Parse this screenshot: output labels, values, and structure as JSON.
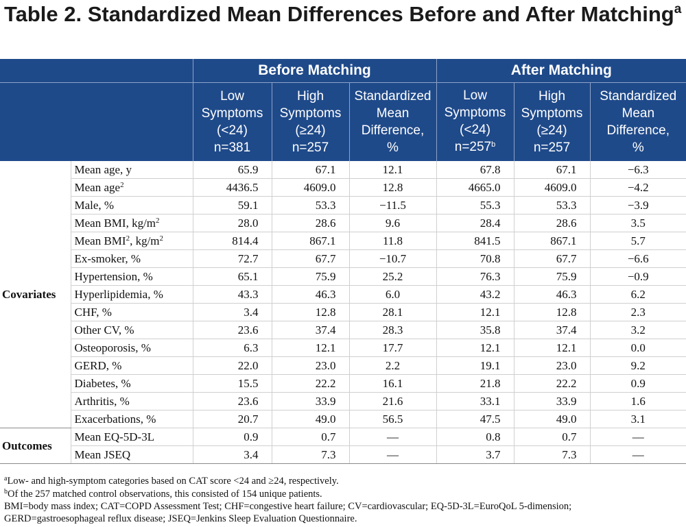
{
  "title": {
    "text": "Table 2. Standardized Mean Differences Before and After Matching",
    "superscript": "a"
  },
  "header": {
    "groups": [
      "Before Matching",
      "After Matching"
    ],
    "columns": [
      {
        "lines": [
          "Low",
          "Symptoms",
          "(<24)",
          "n=381"
        ],
        "sup": ""
      },
      {
        "lines": [
          "High",
          "Symptoms",
          "(≥24)",
          "n=257"
        ],
        "sup": ""
      },
      {
        "lines": [
          "Standardized",
          "Mean",
          "Difference,",
          "%"
        ],
        "sup": ""
      },
      {
        "lines": [
          "Low",
          "Symptoms",
          "(<24)",
          "n=257"
        ],
        "sup": "b"
      },
      {
        "lines": [
          "High",
          "Symptoms",
          "(≥24)",
          "n=257"
        ],
        "sup": ""
      },
      {
        "lines": [
          "Standardized",
          "Mean",
          "Difference,",
          "%"
        ],
        "sup": ""
      }
    ]
  },
  "sections": [
    {
      "name": "Covariates",
      "rows": [
        {
          "label": "Mean age, y",
          "values": [
            "65.9",
            "67.1",
            "12.1",
            "67.8",
            "67.1",
            "−6.3"
          ]
        },
        {
          "label": "Mean age",
          "label_sup": "2",
          "values": [
            "4436.5",
            "4609.0",
            "12.8",
            "4665.0",
            "4609.0",
            "−4.2"
          ]
        },
        {
          "label": "Male, %",
          "values": [
            "59.1",
            "53.3",
            "−11.5",
            "55.3",
            "53.3",
            "−3.9"
          ]
        },
        {
          "label": "Mean BMI, kg/m",
          "label_sup": "2",
          "values": [
            "28.0",
            "28.6",
            "9.6",
            "28.4",
            "28.6",
            "3.5"
          ]
        },
        {
          "label": "Mean BMI",
          "label_sup": "2",
          "label_suffix": ", kg/m",
          "label_sup2": "2",
          "values": [
            "814.4",
            "867.1",
            "11.8",
            "841.5",
            "867.1",
            "5.7"
          ]
        },
        {
          "label": "Ex-smoker, %",
          "values": [
            "72.7",
            "67.7",
            "−10.7",
            "70.8",
            "67.7",
            "−6.6"
          ]
        },
        {
          "label": "Hypertension, %",
          "values": [
            "65.1",
            "75.9",
            "25.2",
            "76.3",
            "75.9",
            "−0.9"
          ]
        },
        {
          "label": "Hyperlipidemia, %",
          "values": [
            "43.3",
            "46.3",
            "6.0",
            "43.2",
            "46.3",
            "6.2"
          ]
        },
        {
          "label": "CHF, %",
          "values": [
            "3.4",
            "12.8",
            "28.1",
            "12.1",
            "12.8",
            "2.3"
          ]
        },
        {
          "label": "Other CV, %",
          "values": [
            "23.6",
            "37.4",
            "28.3",
            "35.8",
            "37.4",
            "3.2"
          ]
        },
        {
          "label": "Osteoporosis, %",
          "values": [
            "6.3",
            "12.1",
            "17.7",
            "12.1",
            "12.1",
            "0.0"
          ]
        },
        {
          "label": "GERD, %",
          "values": [
            "22.0",
            "23.0",
            "2.2",
            "19.1",
            "23.0",
            "9.2"
          ]
        },
        {
          "label": "Diabetes, %",
          "values": [
            "15.5",
            "22.2",
            "16.1",
            "21.8",
            "22.2",
            "0.9"
          ]
        },
        {
          "label": "Arthritis, %",
          "values": [
            "23.6",
            "33.9",
            "21.6",
            "33.1",
            "33.9",
            "1.6"
          ]
        },
        {
          "label": "Exacerbations, %",
          "values": [
            "20.7",
            "49.0",
            "56.5",
            "47.5",
            "49.0",
            "3.1"
          ]
        }
      ]
    },
    {
      "name": "Outcomes",
      "rows": [
        {
          "label": "Mean EQ-5D-3L",
          "values": [
            "0.9",
            "0.7",
            "—",
            "0.8",
            "0.7",
            "—"
          ]
        },
        {
          "label": "Mean JSEQ",
          "values": [
            "3.4",
            "7.3",
            "—",
            "3.7",
            "7.3",
            "—"
          ]
        }
      ]
    }
  ],
  "footnotes": [
    {
      "sup": "a",
      "text": "Low- and high-symptom categories based on CAT score <24 and ≥24, respectively."
    },
    {
      "sup": "b",
      "text": "Of the 257 matched control observations, this consisted of 154 unique patients."
    },
    {
      "sup": "",
      "text": "BMI=body mass index; CAT=COPD Assessment Test; CHF=congestive heart failure; CV=cardiovascular; EQ-5D-3L=EuroQoL 5-dimension;"
    },
    {
      "sup": "",
      "text": "GERD=gastroesophageal reflux disease; JSEQ=Jenkins Sleep Evaluation Questionnaire."
    }
  ],
  "colors": {
    "header_bg": "#1f4a8a",
    "header_text": "#ffffff",
    "body_text": "#111111",
    "grid": "#cfcfcf"
  }
}
